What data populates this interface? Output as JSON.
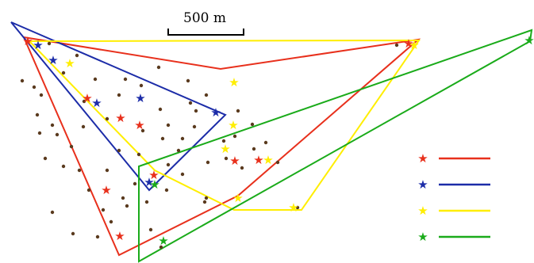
{
  "scale_bar": {
    "label": "500 m"
  },
  "colors": {
    "red": "#e8301c",
    "blue": "#1c2ca8",
    "yellow": "#ffee00",
    "green": "#1aab1a",
    "dot": "#5a3a1e"
  },
  "legend": [
    {
      "color": "red"
    },
    {
      "color": "blue"
    },
    {
      "color": "yellow"
    },
    {
      "color": "green"
    }
  ],
  "star_symbol": "★"
}
